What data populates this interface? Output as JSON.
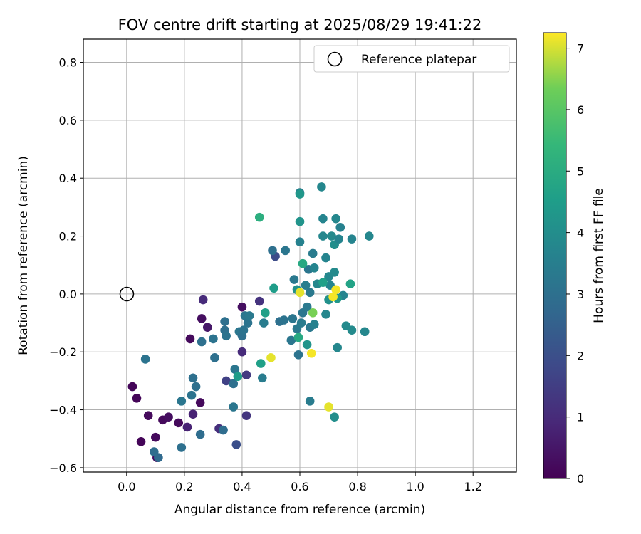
{
  "chart_data": {
    "type": "scatter",
    "title": "FOV centre drift starting at 2025/08/29 19:41:22",
    "xlabel": "Angular distance from reference (arcmin)",
    "ylabel": "Rotation from reference (arcmin)",
    "xlim": [
      -0.15,
      1.35
    ],
    "ylim": [
      -0.615,
      0.88
    ],
    "xticks": [
      0.0,
      0.2,
      0.4,
      0.6,
      0.8,
      1.0,
      1.2
    ],
    "xtick_labels": [
      "0.0",
      "0.2",
      "0.4",
      "0.6",
      "0.8",
      "1.0",
      "1.2"
    ],
    "yticks": [
      -0.6,
      -0.4,
      -0.2,
      0.0,
      0.2,
      0.4,
      0.6,
      0.8
    ],
    "ytick_labels": [
      "−0.6",
      "−0.4",
      "−0.2",
      "0.0",
      "0.2",
      "0.4",
      "0.6",
      "0.8"
    ],
    "grid": true,
    "legend": {
      "placement": "top-right",
      "label": "Reference platepar"
    },
    "reference_point": {
      "x": 0.0,
      "y": 0.0
    },
    "colorbar": {
      "label": "Hours from first FF file",
      "range": [
        0,
        7.25
      ],
      "ticks": [
        0,
        1,
        2,
        3,
        4,
        5,
        6,
        7
      ],
      "tick_labels": [
        "0",
        "1",
        "2",
        "3",
        "4",
        "5",
        "6",
        "7"
      ],
      "colormap": "viridis"
    },
    "points": [
      {
        "x": 0.02,
        "y": -0.32,
        "h": 0.1
      },
      {
        "x": 0.035,
        "y": -0.36,
        "h": 0.1
      },
      {
        "x": 0.05,
        "y": -0.51,
        "h": 0.1
      },
      {
        "x": 0.075,
        "y": -0.42,
        "h": 0.2
      },
      {
        "x": 0.1,
        "y": -0.495,
        "h": 0.2
      },
      {
        "x": 0.105,
        "y": -0.565,
        "h": 0.3
      },
      {
        "x": 0.125,
        "y": -0.435,
        "h": 0.2
      },
      {
        "x": 0.145,
        "y": -0.425,
        "h": 0.3
      },
      {
        "x": 0.18,
        "y": -0.445,
        "h": 0.2
      },
      {
        "x": 0.22,
        "y": -0.155,
        "h": 0.2
      },
      {
        "x": 0.255,
        "y": -0.375,
        "h": 0.2
      },
      {
        "x": 0.26,
        "y": -0.085,
        "h": 0.3
      },
      {
        "x": 0.28,
        "y": -0.115,
        "h": 0.5
      },
      {
        "x": 0.21,
        "y": -0.46,
        "h": 0.8
      },
      {
        "x": 0.23,
        "y": -0.415,
        "h": 0.8
      },
      {
        "x": 0.265,
        "y": -0.02,
        "h": 1.0
      },
      {
        "x": 0.32,
        "y": -0.465,
        "h": 1.1
      },
      {
        "x": 0.4,
        "y": -0.045,
        "h": 0.3
      },
      {
        "x": 0.4,
        "y": -0.2,
        "h": 1.0
      },
      {
        "x": 0.415,
        "y": -0.42,
        "h": 1.3
      },
      {
        "x": 0.415,
        "y": -0.28,
        "h": 1.4
      },
      {
        "x": 0.46,
        "y": -0.025,
        "h": 1.2
      },
      {
        "x": 0.38,
        "y": -0.52,
        "h": 2.0
      },
      {
        "x": 0.345,
        "y": -0.3,
        "h": 1.6
      },
      {
        "x": 0.515,
        "y": 0.13,
        "h": 1.9
      },
      {
        "x": 0.11,
        "y": -0.565,
        "h": 2.8
      },
      {
        "x": 0.095,
        "y": -0.545,
        "h": 2.9
      },
      {
        "x": 0.065,
        "y": -0.225,
        "h": 3.1
      },
      {
        "x": 0.19,
        "y": -0.53,
        "h": 3.0
      },
      {
        "x": 0.19,
        "y": -0.37,
        "h": 3.2
      },
      {
        "x": 0.225,
        "y": -0.35,
        "h": 3.1
      },
      {
        "x": 0.23,
        "y": -0.29,
        "h": 3.0
      },
      {
        "x": 0.24,
        "y": -0.32,
        "h": 3.0
      },
      {
        "x": 0.255,
        "y": -0.485,
        "h": 2.9
      },
      {
        "x": 0.26,
        "y": -0.165,
        "h": 3.0
      },
      {
        "x": 0.3,
        "y": -0.155,
        "h": 3.1
      },
      {
        "x": 0.305,
        "y": -0.22,
        "h": 3.0
      },
      {
        "x": 0.335,
        "y": -0.47,
        "h": 2.9
      },
      {
        "x": 0.34,
        "y": -0.095,
        "h": 3.0
      },
      {
        "x": 0.34,
        "y": -0.125,
        "h": 3.0
      },
      {
        "x": 0.345,
        "y": -0.145,
        "h": 3.1
      },
      {
        "x": 0.37,
        "y": -0.39,
        "h": 3.2
      },
      {
        "x": 0.37,
        "y": -0.31,
        "h": 3.0
      },
      {
        "x": 0.375,
        "y": -0.26,
        "h": 3.2
      },
      {
        "x": 0.39,
        "y": -0.13,
        "h": 3.2
      },
      {
        "x": 0.4,
        "y": -0.145,
        "h": 3.0
      },
      {
        "x": 0.405,
        "y": -0.125,
        "h": 3.1
      },
      {
        "x": 0.41,
        "y": -0.075,
        "h": 3.2
      },
      {
        "x": 0.42,
        "y": -0.1,
        "h": 3.1
      },
      {
        "x": 0.425,
        "y": -0.075,
        "h": 3.3
      },
      {
        "x": 0.47,
        "y": -0.29,
        "h": 3.4
      },
      {
        "x": 0.475,
        "y": -0.1,
        "h": 3.4
      },
      {
        "x": 0.505,
        "y": 0.15,
        "h": 3.0
      },
      {
        "x": 0.53,
        "y": -0.095,
        "h": 3.0
      },
      {
        "x": 0.545,
        "y": -0.09,
        "h": 3.1
      },
      {
        "x": 0.55,
        "y": 0.15,
        "h": 3.2
      },
      {
        "x": 0.57,
        "y": -0.16,
        "h": 3.2
      },
      {
        "x": 0.575,
        "y": -0.085,
        "h": 3.2
      },
      {
        "x": 0.58,
        "y": 0.05,
        "h": 3.3
      },
      {
        "x": 0.59,
        "y": -0.12,
        "h": 3.3
      },
      {
        "x": 0.595,
        "y": -0.21,
        "h": 3.1
      },
      {
        "x": 0.6,
        "y": 0.18,
        "h": 3.6
      },
      {
        "x": 0.6,
        "y": 0.35,
        "h": 3.5
      },
      {
        "x": 0.605,
        "y": -0.1,
        "h": 3.4
      },
      {
        "x": 0.61,
        "y": -0.065,
        "h": 3.2
      },
      {
        "x": 0.62,
        "y": 0.03,
        "h": 3.5
      },
      {
        "x": 0.625,
        "y": -0.045,
        "h": 3.3
      },
      {
        "x": 0.63,
        "y": 0.085,
        "h": 3.2
      },
      {
        "x": 0.635,
        "y": -0.115,
        "h": 3.3
      },
      {
        "x": 0.635,
        "y": 0.005,
        "h": 3.3
      },
      {
        "x": 0.635,
        "y": -0.37,
        "h": 3.4
      },
      {
        "x": 0.645,
        "y": 0.14,
        "h": 3.4
      },
      {
        "x": 0.65,
        "y": -0.105,
        "h": 3.6
      },
      {
        "x": 0.65,
        "y": 0.09,
        "h": 3.7
      },
      {
        "x": 0.66,
        "y": 0.035,
        "h": 3.8
      },
      {
        "x": 0.675,
        "y": 0.37,
        "h": 3.8
      },
      {
        "x": 0.68,
        "y": 0.26,
        "h": 3.7
      },
      {
        "x": 0.68,
        "y": 0.2,
        "h": 3.8
      },
      {
        "x": 0.69,
        "y": 0.125,
        "h": 3.7
      },
      {
        "x": 0.69,
        "y": -0.07,
        "h": 3.8
      },
      {
        "x": 0.7,
        "y": 0.06,
        "h": 3.8
      },
      {
        "x": 0.705,
        "y": 0.03,
        "h": 3.7
      },
      {
        "x": 0.71,
        "y": 0.2,
        "h": 3.9
      },
      {
        "x": 0.72,
        "y": 0.075,
        "h": 3.9
      },
      {
        "x": 0.72,
        "y": 0.17,
        "h": 4.0
      },
      {
        "x": 0.725,
        "y": 0.26,
        "h": 3.8
      },
      {
        "x": 0.73,
        "y": -0.185,
        "h": 3.8
      },
      {
        "x": 0.735,
        "y": 0.19,
        "h": 3.7
      },
      {
        "x": 0.74,
        "y": 0.23,
        "h": 3.6
      },
      {
        "x": 0.75,
        "y": -0.005,
        "h": 3.7
      },
      {
        "x": 0.76,
        "y": -0.11,
        "h": 3.9
      },
      {
        "x": 0.78,
        "y": 0.19,
        "h": 3.7
      },
      {
        "x": 0.78,
        "y": -0.125,
        "h": 3.9
      },
      {
        "x": 0.825,
        "y": -0.13,
        "h": 3.8
      },
      {
        "x": 0.84,
        "y": 0.2,
        "h": 3.8
      },
      {
        "x": 0.72,
        "y": -0.425,
        "h": 4.0
      },
      {
        "x": 0.73,
        "y": -0.015,
        "h": 4.3
      },
      {
        "x": 0.6,
        "y": 0.25,
        "h": 4.2
      },
      {
        "x": 0.6,
        "y": 0.345,
        "h": 4.3
      },
      {
        "x": 0.59,
        "y": 0.015,
        "h": 4.1
      },
      {
        "x": 0.625,
        "y": -0.175,
        "h": 4.2
      },
      {
        "x": 0.7,
        "y": -0.02,
        "h": 4.1
      },
      {
        "x": 0.385,
        "y": -0.285,
        "h": 4.5
      },
      {
        "x": 0.465,
        "y": -0.24,
        "h": 4.6
      },
      {
        "x": 0.48,
        "y": -0.065,
        "h": 4.6
      },
      {
        "x": 0.51,
        "y": 0.02,
        "h": 4.5
      },
      {
        "x": 0.595,
        "y": -0.15,
        "h": 4.9
      },
      {
        "x": 0.61,
        "y": 0.105,
        "h": 4.9
      },
      {
        "x": 0.68,
        "y": 0.04,
        "h": 4.6
      },
      {
        "x": 0.775,
        "y": 0.035,
        "h": 4.7
      },
      {
        "x": 0.46,
        "y": 0.265,
        "h": 5.1
      },
      {
        "x": 0.645,
        "y": -0.065,
        "h": 6.4
      },
      {
        "x": 0.5,
        "y": -0.22,
        "h": 7.1
      },
      {
        "x": 0.6,
        "y": 0.005,
        "h": 7.1
      },
      {
        "x": 0.64,
        "y": -0.205,
        "h": 7.2
      },
      {
        "x": 0.7,
        "y": -0.39,
        "h": 7.1
      },
      {
        "x": 0.715,
        "y": -0.01,
        "h": 7.2
      },
      {
        "x": 0.725,
        "y": 0.015,
        "h": 7.2
      }
    ]
  }
}
